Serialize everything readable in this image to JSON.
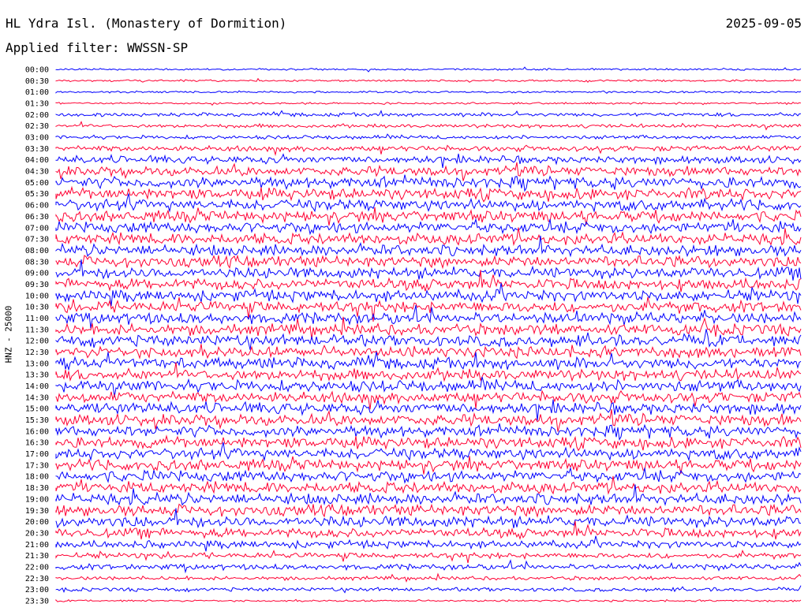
{
  "header": {
    "station": "HL Ydra Isl. (Monastery of Dormition)",
    "date": "2025-09-05",
    "filter": "Applied filter: WWSSN-SP"
  },
  "chart_data": {
    "type": "line",
    "ylabel": "HNZ - 25000",
    "title": "",
    "xlabel": "",
    "colors": [
      "#0000ff",
      "#ff0033"
    ],
    "rows": [
      "00:00",
      "00:30",
      "01:00",
      "01:30",
      "02:00",
      "02:30",
      "03:00",
      "03:30",
      "04:00",
      "04:30",
      "05:00",
      "05:30",
      "06:00",
      "06:30",
      "07:00",
      "07:30",
      "08:00",
      "08:30",
      "09:00",
      "09:30",
      "10:00",
      "10:30",
      "11:00",
      "11:30",
      "12:00",
      "12:30",
      "13:00",
      "13:30",
      "14:00",
      "14:30",
      "15:00",
      "15:30",
      "16:00",
      "16:30",
      "17:00",
      "17:30",
      "18:00",
      "18:30",
      "19:00",
      "19:30",
      "20:00",
      "20:30",
      "21:00",
      "21:30",
      "22:00",
      "22:30",
      "23:00",
      "23:30"
    ],
    "noise_level": [
      1,
      1,
      1,
      1,
      2,
      2,
      2,
      3,
      4,
      5,
      6,
      6,
      6,
      6,
      6,
      6,
      6,
      6,
      6,
      6,
      6,
      6,
      6,
      6,
      6,
      6,
      6,
      6,
      6,
      6,
      6,
      6,
      6,
      6,
      6,
      6,
      6,
      6,
      6,
      6,
      6,
      5,
      4,
      3,
      3,
      2,
      2,
      1
    ]
  }
}
